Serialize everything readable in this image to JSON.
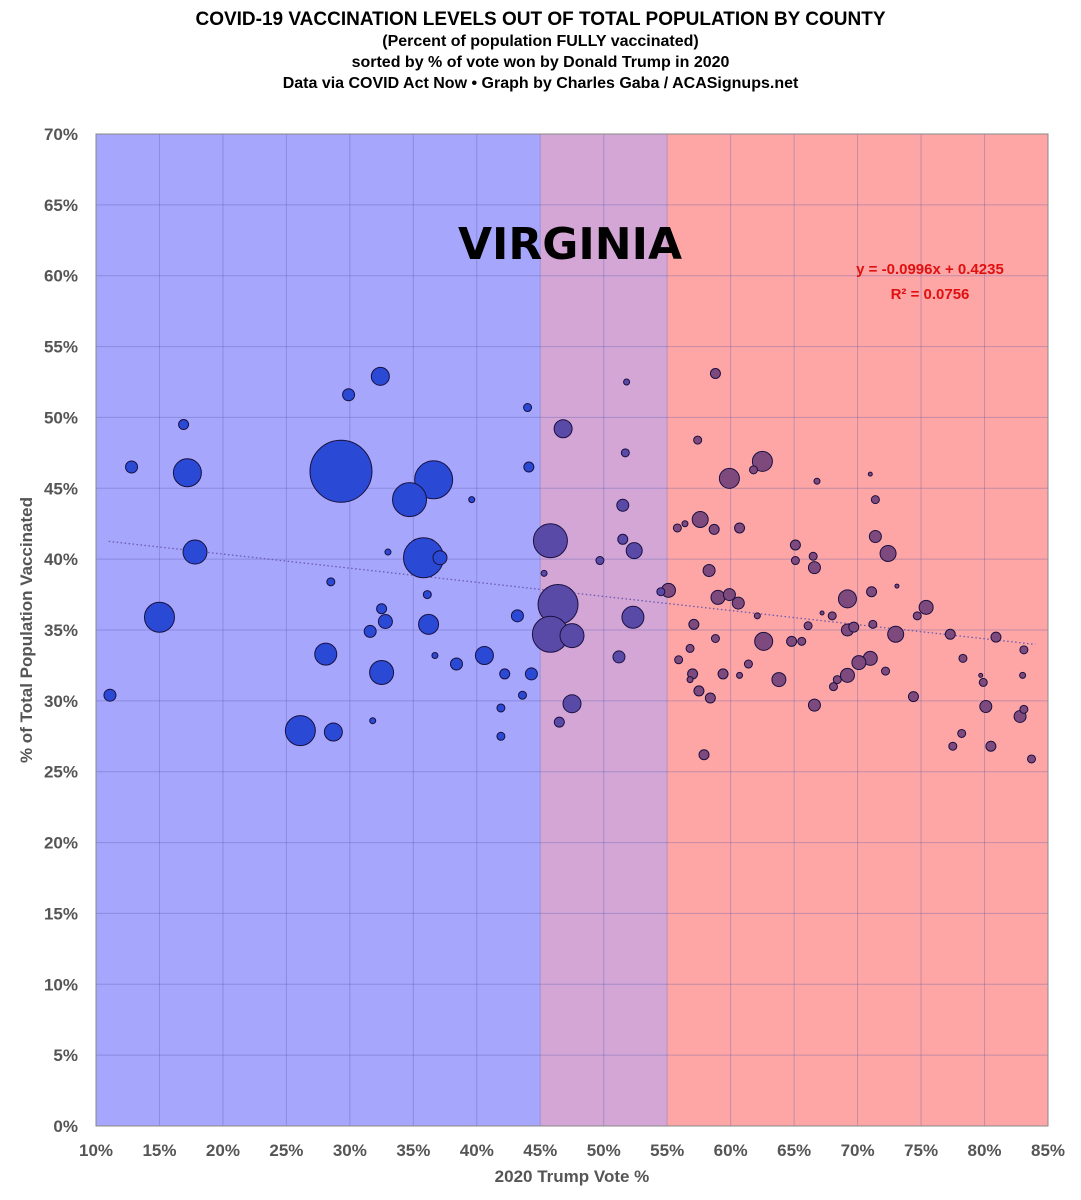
{
  "titles": {
    "line1": "COVID-19 VACCINATION LEVELS OUT OF TOTAL POPULATION BY COUNTY",
    "line2": "(Percent of population FULLY vaccinated)",
    "line3": "sorted by % of vote won by Donald Trump in 2020",
    "line4": "Data via COVID Act Now • Graph by Charles Gaba / ACASignups.net"
  },
  "chart_data": {
    "type": "scatter",
    "subtype": "bubble",
    "state_label": "VIRGINIA",
    "xlabel": "2020 Trump Vote %",
    "ylabel": "% of Total Population Vaccinated",
    "xlim": [
      10,
      85
    ],
    "ylim": [
      0,
      70
    ],
    "xticks": [
      10,
      15,
      20,
      25,
      30,
      35,
      40,
      45,
      50,
      55,
      60,
      65,
      70,
      75,
      80,
      85
    ],
    "yticks": [
      0,
      5,
      10,
      15,
      20,
      25,
      30,
      35,
      40,
      45,
      50,
      55,
      60,
      65,
      70
    ],
    "tick_suffix": "%",
    "grid": true,
    "bands": [
      {
        "from": 10,
        "to": 45,
        "color": "#a6a6fc"
      },
      {
        "from": 45,
        "to": 55,
        "color": "#d3a6d6"
      },
      {
        "from": 55,
        "to": 85,
        "color": "#fea6a6"
      }
    ],
    "bubble_colors": {
      "blue": "#2a4ad6",
      "purple": "#5a4aa8",
      "red": "#7e4a7e"
    },
    "trendline": {
      "equation": "y = -0.0996x + 0.4235",
      "r_squared": "R² = 0.0756",
      "slope": -0.0996,
      "intercept": 0.4235,
      "x_range": [
        11,
        84
      ],
      "color": "#e01010"
    },
    "points": [
      [
        11.1,
        30.4,
        36
      ],
      [
        12.8,
        46.5,
        36
      ],
      [
        16.9,
        49.5,
        25
      ],
      [
        17.2,
        46.1,
        196
      ],
      [
        17.8,
        40.5,
        144
      ],
      [
        15.0,
        35.9,
        225
      ],
      [
        28.1,
        33.3,
        121
      ],
      [
        26.1,
        27.9,
        225
      ],
      [
        28.7,
        27.8,
        81
      ],
      [
        29.3,
        46.2,
        961
      ],
      [
        29.9,
        51.6,
        36
      ],
      [
        32.4,
        52.9,
        81
      ],
      [
        28.5,
        38.4,
        16
      ],
      [
        31.8,
        28.6,
        9
      ],
      [
        31.6,
        34.9,
        36
      ],
      [
        32.5,
        36.5,
        25
      ],
      [
        32.8,
        35.6,
        49
      ],
      [
        32.5,
        32.0,
        144
      ],
      [
        33.0,
        40.5,
        9
      ],
      [
        34.7,
        44.2,
        289
      ],
      [
        35.8,
        40.1,
        400
      ],
      [
        36.6,
        45.6,
        361
      ],
      [
        37.1,
        40.1,
        49
      ],
      [
        36.1,
        37.5,
        16
      ],
      [
        36.2,
        35.4,
        100
      ],
      [
        36.7,
        33.2,
        9
      ],
      [
        38.4,
        32.6,
        36
      ],
      [
        40.6,
        33.2,
        81
      ],
      [
        39.6,
        44.2,
        9
      ],
      [
        43.2,
        36.0,
        36
      ],
      [
        42.2,
        31.9,
        25
      ],
      [
        41.9,
        29.5,
        16
      ],
      [
        41.9,
        27.5,
        16
      ],
      [
        43.6,
        30.4,
        16
      ],
      [
        44.0,
        50.7,
        16
      ],
      [
        44.1,
        46.5,
        25
      ],
      [
        44.3,
        31.9,
        36
      ],
      [
        46.8,
        49.2,
        81
      ],
      [
        45.8,
        41.3,
        289
      ],
      [
        45.3,
        39.0,
        9
      ],
      [
        46.4,
        36.8,
        400
      ],
      [
        45.8,
        34.7,
        324
      ],
      [
        47.5,
        34.6,
        144
      ],
      [
        47.5,
        29.8,
        81
      ],
      [
        46.5,
        28.5,
        25
      ],
      [
        51.8,
        52.5,
        9
      ],
      [
        51.7,
        47.5,
        16
      ],
      [
        51.5,
        43.8,
        36
      ],
      [
        51.5,
        41.4,
        25
      ],
      [
        52.4,
        40.6,
        64
      ],
      [
        52.3,
        35.9,
        121
      ],
      [
        49.7,
        39.9,
        16
      ],
      [
        51.2,
        33.1,
        36
      ],
      [
        54.5,
        37.7,
        16
      ],
      [
        55.1,
        37.8,
        49
      ],
      [
        58.8,
        53.1,
        25
      ],
      [
        57.4,
        48.4,
        16
      ],
      [
        62.5,
        46.9,
        100
      ],
      [
        61.8,
        46.3,
        16
      ],
      [
        59.9,
        45.7,
        100
      ],
      [
        66.8,
        45.5,
        9
      ],
      [
        71.0,
        46.0,
        4
      ],
      [
        71.4,
        44.2,
        16
      ],
      [
        57.6,
        42.8,
        64
      ],
      [
        55.8,
        42.2,
        16
      ],
      [
        56.4,
        42.5,
        9
      ],
      [
        58.7,
        42.1,
        25
      ],
      [
        60.7,
        42.2,
        25
      ],
      [
        71.4,
        41.6,
        36
      ],
      [
        72.4,
        40.4,
        64
      ],
      [
        65.1,
        41.0,
        25
      ],
      [
        65.1,
        39.9,
        16
      ],
      [
        66.5,
        40.2,
        16
      ],
      [
        66.6,
        39.4,
        36
      ],
      [
        58.3,
        39.2,
        36
      ],
      [
        73.1,
        38.1,
        4
      ],
      [
        59.0,
        37.3,
        49
      ],
      [
        59.9,
        37.5,
        36
      ],
      [
        60.6,
        36.9,
        36
      ],
      [
        69.2,
        37.2,
        81
      ],
      [
        71.1,
        37.7,
        25
      ],
      [
        75.4,
        36.6,
        49
      ],
      [
        74.7,
        36.0,
        16
      ],
      [
        62.1,
        36.0,
        9
      ],
      [
        67.2,
        36.2,
        4
      ],
      [
        68.0,
        36.0,
        16
      ],
      [
        66.1,
        35.3,
        16
      ],
      [
        69.7,
        35.2,
        25
      ],
      [
        69.2,
        35.0,
        36
      ],
      [
        71.2,
        35.4,
        16
      ],
      [
        73.0,
        34.7,
        64
      ],
      [
        77.3,
        34.7,
        25
      ],
      [
        80.9,
        34.5,
        25
      ],
      [
        83.1,
        33.6,
        16
      ],
      [
        57.1,
        35.4,
        25
      ],
      [
        62.6,
        34.2,
        81
      ],
      [
        64.8,
        34.2,
        25
      ],
      [
        65.6,
        34.2,
        16
      ],
      [
        58.8,
        34.4,
        16
      ],
      [
        56.8,
        33.7,
        16
      ],
      [
        55.9,
        32.9,
        16
      ],
      [
        61.4,
        32.6,
        16
      ],
      [
        71.0,
        33.0,
        49
      ],
      [
        70.1,
        32.7,
        49
      ],
      [
        72.2,
        32.1,
        16
      ],
      [
        78.3,
        33.0,
        16
      ],
      [
        57.0,
        31.9,
        25
      ],
      [
        56.8,
        31.5,
        9
      ],
      [
        59.4,
        31.9,
        25
      ],
      [
        60.7,
        31.8,
        9
      ],
      [
        63.8,
        31.5,
        49
      ],
      [
        69.2,
        31.8,
        49
      ],
      [
        68.4,
        31.5,
        16
      ],
      [
        68.1,
        31.0,
        16
      ],
      [
        83.0,
        31.8,
        9
      ],
      [
        79.7,
        31.8,
        4
      ],
      [
        79.9,
        31.3,
        16
      ],
      [
        57.5,
        30.7,
        25
      ],
      [
        58.4,
        30.2,
        25
      ],
      [
        74.4,
        30.3,
        25
      ],
      [
        66.6,
        29.7,
        36
      ],
      [
        80.1,
        29.6,
        36
      ],
      [
        83.1,
        29.4,
        16
      ],
      [
        82.8,
        28.9,
        36
      ],
      [
        78.2,
        27.7,
        16
      ],
      [
        77.5,
        26.8,
        16
      ],
      [
        80.5,
        26.8,
        25
      ],
      [
        57.9,
        26.2,
        25
      ],
      [
        83.7,
        25.9,
        16
      ]
    ]
  }
}
